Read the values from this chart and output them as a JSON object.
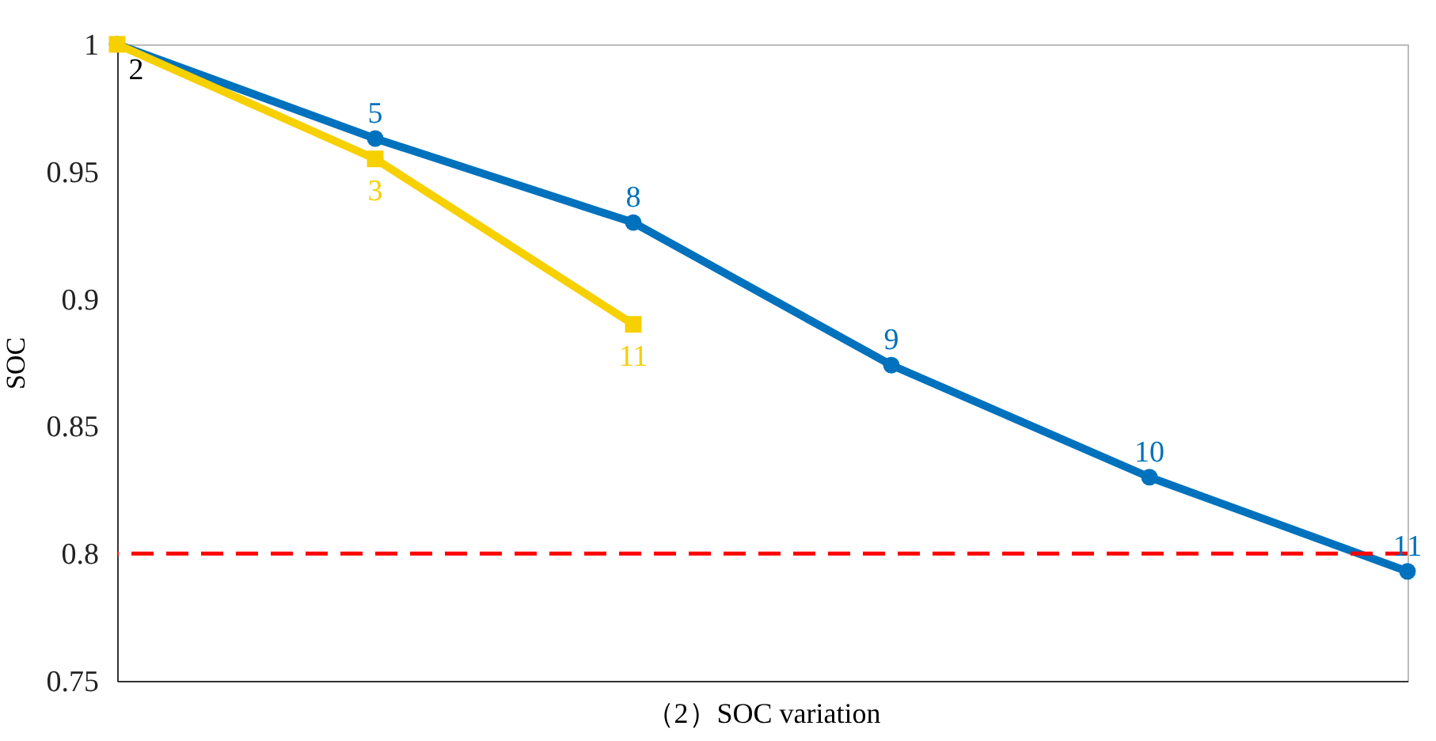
{
  "chart_data": {
    "type": "line",
    "xlabel": "（2）SOC variation",
    "ylabel": "SOC",
    "categories": [
      null,
      null,
      null,
      null,
      null,
      null
    ],
    "series": [
      {
        "color": "#0072bd",
        "values": [
          1,
          0.963,
          0.93,
          0.874,
          0.83,
          0.793
        ],
        "marker": "circle"
      },
      {
        "color": "#f7d000",
        "values": [
          1,
          0.955,
          0.89,
          null,
          null,
          null
        ],
        "marker": "square"
      }
    ],
    "ylim": [
      0.75,
      1
    ],
    "yticks": [
      {
        "value": 0.75,
        "label": "0.75"
      },
      {
        "value": 0.8,
        "label": "0.8"
      },
      {
        "value": 0.85,
        "label": "0.85"
      },
      {
        "value": 0.9,
        "label": "0.9"
      },
      {
        "value": 0.95,
        "label": "0.95"
      },
      {
        "value": 1,
        "label": "1"
      }
    ],
    "grid": false,
    "line_style": "solid",
    "ref_lines": [
      {
        "axis": "y",
        "value": 0.8,
        "color": "#ff0000",
        "line_style": "dashed"
      }
    ],
    "annotations": [
      {
        "text": "2",
        "y": 1
      },
      {
        "text": "5",
        "y": 0.963
      },
      {
        "text": "8",
        "y": 0.93
      },
      {
        "text": "9",
        "y": 0.874
      },
      {
        "text": "10",
        "y": 0.83
      },
      {
        "text": "11",
        "y": 0.793
      },
      {
        "text": "3",
        "y": 0.955
      },
      {
        "text": "11",
        "y": 0.89
      }
    ]
  }
}
